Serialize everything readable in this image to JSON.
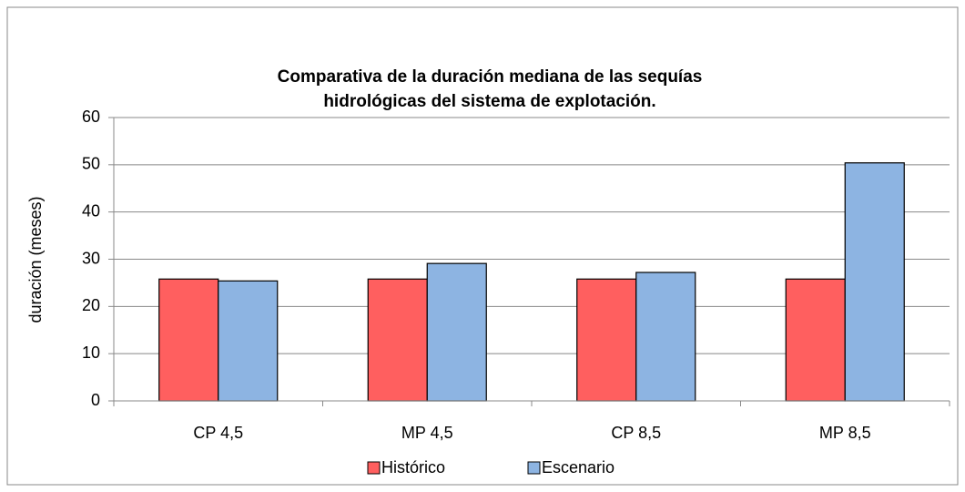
{
  "chart_data": {
    "type": "bar",
    "title": [
      "Comparativa de la duración mediana de las sequías",
      "hidrológicas del sistema de explotación."
    ],
    "ylabel": "duración (meses)",
    "categories": [
      "CP 4,5",
      "MP 4,5",
      "CP 8,5",
      "MP 8,5"
    ],
    "series": [
      {
        "name": "Histórico",
        "color": "#ff5f5f",
        "values": [
          25.8,
          25.8,
          25.8,
          25.8
        ]
      },
      {
        "name": "Escenario",
        "color": "#8db4e2",
        "values": [
          25.4,
          29.1,
          27.2,
          50.4
        ]
      }
    ],
    "ylim": [
      0,
      60
    ],
    "yticks": [
      0,
      10,
      20,
      30,
      40,
      50,
      60
    ],
    "grid": true,
    "legend": "bottom"
  }
}
